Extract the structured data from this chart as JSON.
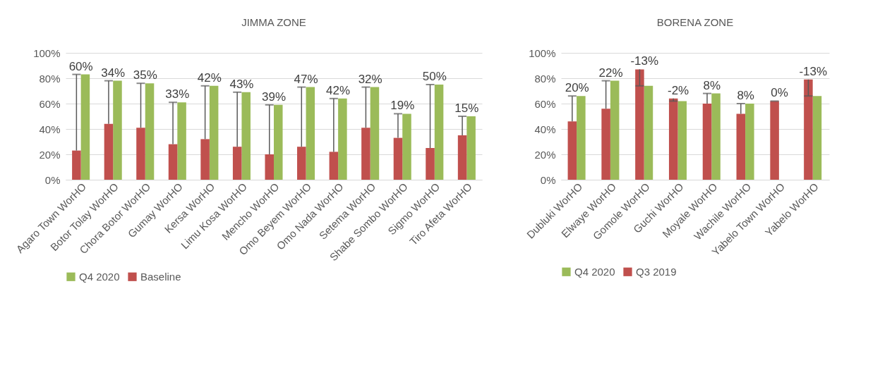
{
  "chart_data": [
    {
      "type": "bar",
      "title": "JIMMA ZONE",
      "categories": [
        "Agaro Town WorHO",
        "Botor Tolay WorHO",
        "Chora Botor WorHO",
        "Gumay WorHO",
        "Kersa WorHO",
        "Limu Kosa WorHO",
        "Mencho WorHO",
        "Omo Beyem WorHO",
        "Omo Nada WorHO",
        "Setema WorHO",
        "Shabe Sombo WorHO",
        "Sigmo WorHO",
        "Tiro Afeta  WorHO"
      ],
      "series": [
        {
          "name": "Q4 2020",
          "color": "#9bbb59",
          "values": [
            83,
            78,
            76,
            61,
            74,
            69,
            59,
            73,
            64,
            73,
            52,
            75,
            50
          ]
        },
        {
          "name": "Baseline",
          "color": "#c0504d",
          "values": [
            23,
            44,
            41,
            28,
            32,
            26,
            20,
            26,
            22,
            41,
            33,
            25,
            35
          ],
          "errors": [
            [
              23,
              83
            ],
            [
              44,
              78
            ],
            [
              41,
              76
            ],
            [
              28,
              61
            ],
            [
              32,
              74
            ],
            [
              26,
              69
            ],
            [
              20,
              59
            ],
            [
              26,
              73
            ],
            [
              22,
              64
            ],
            [
              41,
              73
            ],
            [
              33,
              52
            ],
            [
              25,
              75
            ],
            [
              35,
              50
            ]
          ]
        }
      ],
      "ylim": [
        0,
        100
      ],
      "yticks": [
        {
          "value": 0,
          "label": "0%"
        },
        {
          "value": 20,
          "label": "20%"
        },
        {
          "value": 40,
          "label": "40%"
        },
        {
          "value": 60,
          "label": "60%"
        },
        {
          "value": 80,
          "label": "80%"
        },
        {
          "value": 100,
          "label": "100%"
        }
      ],
      "grid": "y",
      "legend": "bottom",
      "annotations": [
        "60%",
        "34%",
        "35%",
        "33%",
        "42%",
        "43%",
        "39%",
        "47%",
        "42%",
        "32%",
        "19%",
        "50%",
        "15%"
      ]
    },
    {
      "type": "bar",
      "title": "BORENA ZONE",
      "categories": [
        "Dubluki WorHO",
        "Elwaye WorHO",
        "Gomole WorHO",
        "Guchi WorHO",
        "Moyale WorHO",
        "Wachile WorHO",
        "Yabelo Town WorHO",
        "Yabelo WorHO"
      ],
      "series": [
        {
          "name": "Q4 2020",
          "color": "#9bbb59",
          "values": [
            66,
            78,
            74,
            62,
            68,
            60,
            null,
            66
          ]
        },
        {
          "name": "Q3 2019",
          "color": "#c0504d",
          "values": [
            46,
            56,
            87,
            64,
            60,
            52,
            62,
            79
          ],
          "errors": [
            [
              46,
              66
            ],
            [
              56,
              78
            ],
            [
              74,
              87
            ],
            [
              62,
              64
            ],
            [
              60,
              68
            ],
            [
              52,
              60
            ],
            [
              62,
              62
            ],
            [
              66,
              79
            ]
          ]
        }
      ],
      "ylim": [
        0,
        100
      ],
      "yticks": [
        {
          "value": 0,
          "label": "0%"
        },
        {
          "value": 20,
          "label": "20%"
        },
        {
          "value": 40,
          "label": "40%"
        },
        {
          "value": 60,
          "label": "60%"
        },
        {
          "value": 80,
          "label": "80%"
        },
        {
          "value": 100,
          "label": "100%"
        }
      ],
      "grid": "y",
      "legend": "bottom",
      "annotations": [
        "20%",
        "22%",
        "-13%",
        "-2%",
        "8%",
        "8%",
        "0%",
        "-13%"
      ]
    }
  ]
}
